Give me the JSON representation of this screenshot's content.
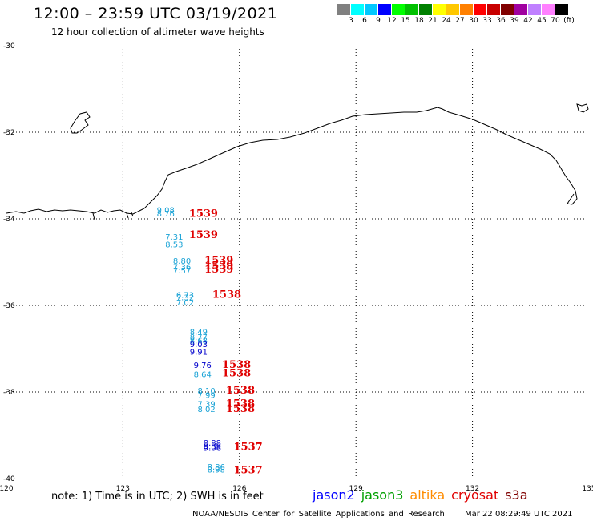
{
  "title": "12:00 – 23:59 UTC 03/19/2021",
  "subtitle": "12 hour collection of altimeter wave heights",
  "legend": {
    "colors": [
      "#808080",
      "#00ffff",
      "#00c8ff",
      "#0000ff",
      "#00ff00",
      "#00c000",
      "#008000",
      "#ffff00",
      "#ffc800",
      "#ff8000",
      "#ff0000",
      "#c80000",
      "#800000",
      "#a000a0",
      "#c080ff",
      "#ff80ff",
      "#000000"
    ],
    "labels": [
      "3",
      "6",
      "9",
      "12",
      "15",
      "18",
      "21",
      "24",
      "27",
      "30",
      "33",
      "36",
      "39",
      "42",
      "45",
      "70",
      "(ft)"
    ]
  },
  "axes": {
    "lon_ticks": [
      "120",
      "123",
      "126",
      "129",
      "132",
      "135"
    ],
    "lat_ticks": [
      "-30",
      "-32",
      "-34",
      "-36",
      "-38",
      "-40"
    ]
  },
  "observations": {
    "points": [
      {
        "lon": 124.1,
        "lat": -33.86,
        "value": "9.08",
        "color": "#1aa3d6"
      },
      {
        "lon": 124.1,
        "lat": -33.94,
        "value": "8.76",
        "color": "#1aa3d6"
      },
      {
        "lon": 124.32,
        "lat": -34.48,
        "value": "7.31",
        "color": "#1aa3d6"
      },
      {
        "lon": 124.32,
        "lat": -34.66,
        "value": "8.53",
        "color": "#1aa3d6"
      },
      {
        "lon": 124.52,
        "lat": -35.04,
        "value": "8.80",
        "color": "#1aa3d6"
      },
      {
        "lon": 124.52,
        "lat": -35.18,
        "value": "7.36",
        "color": "#1aa3d6"
      },
      {
        "lon": 124.52,
        "lat": -35.26,
        "value": "7.57",
        "color": "#1aa3d6"
      },
      {
        "lon": 124.6,
        "lat": -35.82,
        "value": "6.73",
        "color": "#1aa3d6"
      },
      {
        "lon": 124.6,
        "lat": -35.88,
        "value": "7.32",
        "color": "#1aa3d6"
      },
      {
        "lon": 124.6,
        "lat": -36.0,
        "value": "7.02",
        "color": "#1aa3d6"
      },
      {
        "lon": 124.95,
        "lat": -36.68,
        "value": "8.49",
        "color": "#1aa3d6"
      },
      {
        "lon": 124.95,
        "lat": -36.8,
        "value": "8.77",
        "color": "#1aa3d6"
      },
      {
        "lon": 124.95,
        "lat": -36.88,
        "value": "8.68",
        "color": "#1aa3d6"
      },
      {
        "lon": 124.95,
        "lat": -36.96,
        "value": "9.03",
        "color": "#0000cc"
      },
      {
        "lon": 124.95,
        "lat": -37.14,
        "value": "9.91",
        "color": "#0000cc"
      },
      {
        "lon": 125.05,
        "lat": -37.44,
        "value": "9.76",
        "color": "#0000cc"
      },
      {
        "lon": 125.05,
        "lat": -37.66,
        "value": "8.64",
        "color": "#1aa3d6"
      },
      {
        "lon": 125.15,
        "lat": -38.04,
        "value": "8.10",
        "color": "#1aa3d6"
      },
      {
        "lon": 125.15,
        "lat": -38.14,
        "value": "7.99",
        "color": "#1aa3d6"
      },
      {
        "lon": 125.15,
        "lat": -38.34,
        "value": "7.39",
        "color": "#1aa3d6"
      },
      {
        "lon": 125.15,
        "lat": -38.46,
        "value": "8.02",
        "color": "#1aa3d6"
      },
      {
        "lon": 125.3,
        "lat": -39.24,
        "value": "8.88",
        "color": "#0000cc"
      },
      {
        "lon": 125.3,
        "lat": -39.32,
        "value": "9.39",
        "color": "#0000cc"
      },
      {
        "lon": 125.3,
        "lat": -39.36,
        "value": "9.06",
        "color": "#0000cc"
      },
      {
        "lon": 125.4,
        "lat": -39.8,
        "value": "8.86",
        "color": "#1aa3d6"
      },
      {
        "lon": 125.4,
        "lat": -39.86,
        "value": "8.98",
        "color": "#1aa3d6"
      }
    ],
    "times": [
      {
        "lon": 124.7,
        "lat": -33.95,
        "value": "1539"
      },
      {
        "lon": 124.7,
        "lat": -34.44,
        "value": "1539"
      },
      {
        "lon": 125.1,
        "lat": -35.04,
        "value": "1539"
      },
      {
        "lon": 125.1,
        "lat": -35.16,
        "value": "1539"
      },
      {
        "lon": 125.1,
        "lat": -35.24,
        "value": "1539"
      },
      {
        "lon": 125.3,
        "lat": -35.82,
        "value": "1538"
      },
      {
        "lon": 125.55,
        "lat": -37.44,
        "value": "1538"
      },
      {
        "lon": 125.55,
        "lat": -37.64,
        "value": "1538"
      },
      {
        "lon": 125.65,
        "lat": -38.04,
        "value": "1538"
      },
      {
        "lon": 125.65,
        "lat": -38.34,
        "value": "1538"
      },
      {
        "lon": 125.65,
        "lat": -38.46,
        "value": "1538"
      },
      {
        "lon": 125.85,
        "lat": -39.34,
        "value": "1537"
      },
      {
        "lon": 125.85,
        "lat": -39.88,
        "value": "1537"
      }
    ]
  },
  "note": "note:  1) Time is in UTC;  2) SWH is in feet",
  "satellites": [
    {
      "name": "jason2",
      "color": "#0000ff"
    },
    {
      "name": "jason3",
      "color": "#00a000"
    },
    {
      "name": "altika",
      "color": "#ff8c00"
    },
    {
      "name": "cryosat",
      "color": "#e00000"
    },
    {
      "name": "s3a",
      "color": "#800000"
    }
  ],
  "footer": "NOAA/NESDIS Center for Satellite Applications and Research",
  "footer_time": "Mar 22 08:29:49 UTC 2021"
}
